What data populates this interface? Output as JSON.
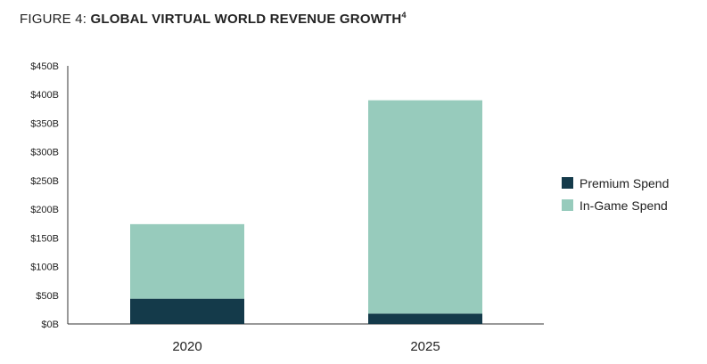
{
  "figure": {
    "prefix": "FIGURE 4: ",
    "title": "GLOBAL VIRTUAL WORLD REVENUE GROWTH",
    "footnote": "4"
  },
  "colors": {
    "premium": "#143a4a",
    "in_game": "#97cbbc",
    "axis": "#333333"
  },
  "chart_data": {
    "type": "bar",
    "stacked": true,
    "title": "GLOBAL VIRTUAL WORLD REVENUE GROWTH",
    "categories": [
      "2020",
      "2025"
    ],
    "series": [
      {
        "name": "Premium Spend",
        "values": [
          44,
          18
        ],
        "color": "#143a4a"
      },
      {
        "name": "In-Game Spend",
        "values": [
          130,
          372
        ],
        "color": "#97cbbc"
      }
    ],
    "ylim": [
      0,
      450
    ],
    "yticks": [
      0,
      50,
      100,
      150,
      200,
      250,
      300,
      350,
      400,
      450
    ],
    "ytick_labels": [
      "$0B",
      "$50B",
      "$100B",
      "$150B",
      "$200B",
      "$250B",
      "$300B",
      "$350B",
      "$400B",
      "$450B"
    ],
    "xlabel": "",
    "ylabel": "",
    "grid": false,
    "legend_position": "right"
  }
}
